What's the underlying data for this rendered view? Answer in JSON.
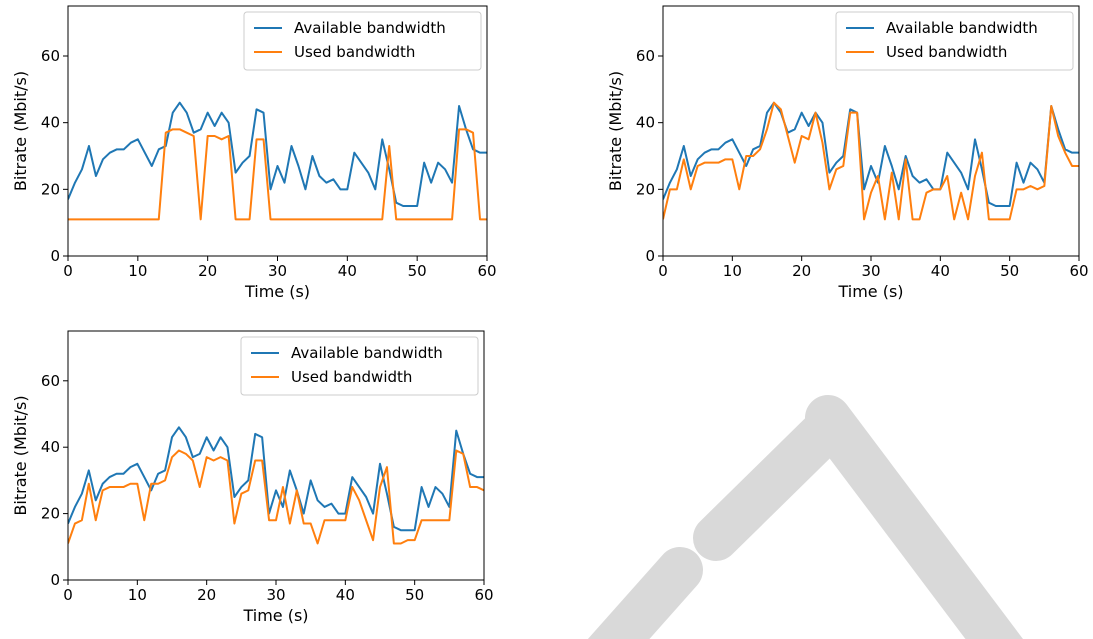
{
  "chart_data": [
    {
      "type": "line",
      "xlabel": "Time (s)",
      "ylabel": "Bitrate (Mbit/s)",
      "legend": "upper right",
      "xlim": [
        0,
        60
      ],
      "ylim": [
        0,
        75
      ],
      "xticks": [
        0,
        10,
        20,
        30,
        40,
        50,
        60
      ],
      "yticks": [
        0,
        20,
        40,
        60
      ],
      "x": [
        0,
        1,
        2,
        3,
        4,
        5,
        6,
        7,
        8,
        9,
        10,
        11,
        12,
        13,
        14,
        15,
        16,
        17,
        18,
        19,
        20,
        21,
        22,
        23,
        24,
        25,
        26,
        27,
        28,
        29,
        30,
        31,
        32,
        33,
        34,
        35,
        36,
        37,
        38,
        39,
        40,
        41,
        42,
        43,
        44,
        45,
        46,
        47,
        48,
        49,
        50,
        51,
        52,
        53,
        54,
        55,
        56,
        57,
        58,
        59,
        60
      ],
      "series": [
        {
          "name": "Available bandwidth",
          "color": "#1f77b4",
          "values": [
            17,
            22,
            26,
            33,
            24,
            29,
            31,
            32,
            32,
            34,
            35,
            31,
            27,
            32,
            33,
            43,
            46,
            43,
            37,
            38,
            43,
            39,
            43,
            40,
            25,
            28,
            30,
            44,
            43,
            20,
            27,
            22,
            33,
            27,
            20,
            30,
            24,
            22,
            23,
            20,
            20,
            31,
            28,
            25,
            20,
            35,
            26,
            16,
            15,
            15,
            15,
            28,
            22,
            28,
            26,
            22,
            45,
            38,
            32,
            31,
            31
          ]
        },
        {
          "name": "Used bandwidth",
          "color": "#ff7f0e",
          "values": [
            11,
            11,
            11,
            11,
            11,
            11,
            11,
            11,
            11,
            11,
            11,
            11,
            11,
            11,
            37,
            38,
            38,
            37,
            36,
            11,
            36,
            36,
            35,
            36,
            11,
            11,
            11,
            35,
            35,
            11,
            11,
            11,
            11,
            11,
            11,
            11,
            11,
            11,
            11,
            11,
            11,
            11,
            11,
            11,
            11,
            11,
            33,
            11,
            11,
            11,
            11,
            11,
            11,
            11,
            11,
            11,
            38,
            38,
            37,
            11,
            11
          ]
        }
      ]
    },
    {
      "type": "line",
      "xlabel": "Time (s)",
      "ylabel": "Bitrate (Mbit/s)",
      "legend": "upper right",
      "xlim": [
        0,
        60
      ],
      "ylim": [
        0,
        75
      ],
      "xticks": [
        0,
        10,
        20,
        30,
        40,
        50,
        60
      ],
      "yticks": [
        0,
        20,
        40,
        60
      ],
      "x": [
        0,
        1,
        2,
        3,
        4,
        5,
        6,
        7,
        8,
        9,
        10,
        11,
        12,
        13,
        14,
        15,
        16,
        17,
        18,
        19,
        20,
        21,
        22,
        23,
        24,
        25,
        26,
        27,
        28,
        29,
        30,
        31,
        32,
        33,
        34,
        35,
        36,
        37,
        38,
        39,
        40,
        41,
        42,
        43,
        44,
        45,
        46,
        47,
        48,
        49,
        50,
        51,
        52,
        53,
        54,
        55,
        56,
        57,
        58,
        59,
        60
      ],
      "series": [
        {
          "name": "Available bandwidth",
          "color": "#1f77b4",
          "values": [
            17,
            22,
            26,
            33,
            24,
            29,
            31,
            32,
            32,
            34,
            35,
            31,
            27,
            32,
            33,
            43,
            46,
            43,
            37,
            38,
            43,
            39,
            43,
            40,
            25,
            28,
            30,
            44,
            43,
            20,
            27,
            22,
            33,
            27,
            20,
            30,
            24,
            22,
            23,
            20,
            20,
            31,
            28,
            25,
            20,
            35,
            26,
            16,
            15,
            15,
            15,
            28,
            22,
            28,
            26,
            22,
            45,
            38,
            32,
            31,
            31
          ]
        },
        {
          "name": "Used bandwidth",
          "color": "#ff7f0e",
          "values": [
            11,
            20,
            20,
            29,
            20,
            27,
            28,
            28,
            28,
            29,
            29,
            20,
            30,
            30,
            32,
            38,
            46,
            44,
            36,
            28,
            36,
            35,
            43,
            34,
            20,
            26,
            27,
            43,
            43,
            11,
            19,
            24,
            11,
            25,
            11,
            29,
            11,
            11,
            19,
            20,
            20,
            24,
            11,
            19,
            11,
            24,
            31,
            11,
            11,
            11,
            11,
            20,
            20,
            21,
            20,
            21,
            45,
            36,
            31,
            27,
            27
          ]
        }
      ]
    },
    {
      "type": "line",
      "xlabel": "Time (s)",
      "ylabel": "Bitrate (Mbit/s)",
      "legend": "upper right",
      "xlim": [
        0,
        60
      ],
      "ylim": [
        0,
        75
      ],
      "xticks": [
        0,
        10,
        20,
        30,
        40,
        50,
        60
      ],
      "yticks": [
        0,
        20,
        40,
        60
      ],
      "x": [
        0,
        1,
        2,
        3,
        4,
        5,
        6,
        7,
        8,
        9,
        10,
        11,
        12,
        13,
        14,
        15,
        16,
        17,
        18,
        19,
        20,
        21,
        22,
        23,
        24,
        25,
        26,
        27,
        28,
        29,
        30,
        31,
        32,
        33,
        34,
        35,
        36,
        37,
        38,
        39,
        40,
        41,
        42,
        43,
        44,
        45,
        46,
        47,
        48,
        49,
        50,
        51,
        52,
        53,
        54,
        55,
        56,
        57,
        58,
        59,
        60
      ],
      "series": [
        {
          "name": "Available bandwidth",
          "color": "#1f77b4",
          "values": [
            17,
            22,
            26,
            33,
            24,
            29,
            31,
            32,
            32,
            34,
            35,
            31,
            27,
            32,
            33,
            43,
            46,
            43,
            37,
            38,
            43,
            39,
            43,
            40,
            25,
            28,
            30,
            44,
            43,
            20,
            27,
            22,
            33,
            27,
            20,
            30,
            24,
            22,
            23,
            20,
            20,
            31,
            28,
            25,
            20,
            35,
            26,
            16,
            15,
            15,
            15,
            28,
            22,
            28,
            26,
            22,
            45,
            38,
            32,
            31,
            31
          ]
        },
        {
          "name": "Used bandwidth",
          "color": "#ff7f0e",
          "values": [
            11,
            17,
            18,
            29,
            18,
            27,
            28,
            28,
            28,
            29,
            29,
            18,
            29,
            29,
            30,
            37,
            39,
            38,
            36,
            28,
            37,
            36,
            37,
            36,
            17,
            26,
            27,
            36,
            36,
            18,
            18,
            28,
            17,
            27,
            17,
            17,
            11,
            18,
            18,
            18,
            18,
            28,
            24,
            18,
            12,
            28,
            34,
            11,
            11,
            12,
            12,
            18,
            18,
            18,
            18,
            18,
            39,
            38,
            28,
            28,
            27
          ]
        }
      ]
    }
  ]
}
